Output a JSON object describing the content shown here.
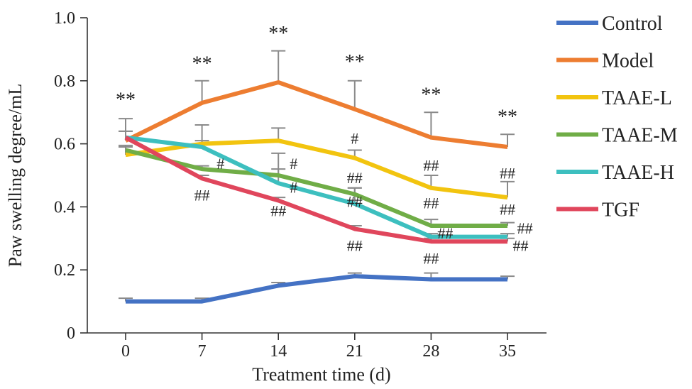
{
  "chart_data": {
    "type": "line",
    "xlabel": "Treatment time (d)",
    "ylabel": "Paw swelling degree/mL",
    "x": [
      0,
      7,
      14,
      21,
      28,
      35
    ],
    "x_tick_labels": [
      "0",
      "7",
      "14",
      "21",
      "28",
      "35"
    ],
    "ylim": [
      0,
      1.0
    ],
    "y_tick_labels": [
      "0",
      "0.2",
      "0.4",
      "0.6",
      "0.8",
      "1.0"
    ],
    "grid": false,
    "legend_position": "right",
    "series": [
      {
        "name": "Control",
        "color": "#4472c4",
        "values": [
          0.1,
          0.1,
          0.15,
          0.18,
          0.17,
          0.17
        ],
        "error": [
          0.01,
          0.01,
          0.01,
          0.01,
          0.02,
          0.01
        ]
      },
      {
        "name": "Model",
        "color": "#ed7d31",
        "values": [
          0.61,
          0.73,
          0.795,
          0.71,
          0.62,
          0.59
        ],
        "error": [
          0.07,
          0.07,
          0.1,
          0.09,
          0.08,
          0.04
        ]
      },
      {
        "name": "TAAE-L",
        "color": "#f2c40f",
        "values": [
          0.565,
          0.6,
          0.61,
          0.555,
          0.46,
          0.43
        ],
        "error": [
          0.03,
          0.01,
          0.04,
          0.025,
          0.04,
          0.05
        ]
      },
      {
        "name": "TAAE-M",
        "color": "#70ad47",
        "values": [
          0.58,
          0.52,
          0.5,
          0.44,
          0.34,
          0.34
        ],
        "error": [
          0.01,
          0.01,
          0.02,
          0.02,
          0.02,
          0.01
        ]
      },
      {
        "name": "TAAE-H",
        "color": "#3dbfbf",
        "values": [
          0.62,
          0.59,
          0.475,
          0.41,
          0.305,
          0.305
        ],
        "error": [
          0.02,
          0.07,
          0.095,
          0.05,
          0.01,
          0.01
        ]
      },
      {
        "name": "TGF",
        "color": "#e0465c",
        "values": [
          0.62,
          0.49,
          0.42,
          0.33,
          0.29,
          0.29
        ],
        "error": [
          0.02,
          0.01,
          0.01,
          0.01,
          0.01,
          0.01
        ]
      }
    ],
    "annotations": [
      {
        "text": "**",
        "x": 0,
        "y": 0.72,
        "size": "large"
      },
      {
        "text": "**",
        "x": 7,
        "y": 0.835,
        "size": "large"
      },
      {
        "text": "**",
        "x": 14,
        "y": 0.93,
        "size": "large"
      },
      {
        "text": "**",
        "x": 21,
        "y": 0.84,
        "size": "large"
      },
      {
        "text": "**",
        "x": 28,
        "y": 0.735,
        "size": "large"
      },
      {
        "text": "**",
        "x": 35,
        "y": 0.665,
        "size": "large"
      },
      {
        "text": "#",
        "x": 8.7,
        "y": 0.52,
        "size": "small"
      },
      {
        "text": "##",
        "x": 7,
        "y": 0.42,
        "size": "small"
      },
      {
        "text": "#",
        "x": 15.4,
        "y": 0.52,
        "size": "small"
      },
      {
        "text": "#",
        "x": 15.4,
        "y": 0.445,
        "size": "small"
      },
      {
        "text": "##",
        "x": 14,
        "y": 0.37,
        "size": "small"
      },
      {
        "text": "#",
        "x": 21,
        "y": 0.6,
        "size": "small"
      },
      {
        "text": "##",
        "x": 21,
        "y": 0.475,
        "size": "small"
      },
      {
        "text": "##",
        "x": 21,
        "y": 0.4,
        "size": "small"
      },
      {
        "text": "##",
        "x": 21,
        "y": 0.26,
        "size": "small"
      },
      {
        "text": "##",
        "x": 28,
        "y": 0.515,
        "size": "small"
      },
      {
        "text": "##",
        "x": 28,
        "y": 0.395,
        "size": "small"
      },
      {
        "text": "##",
        "x": 29.3,
        "y": 0.3,
        "size": "small"
      },
      {
        "text": "##",
        "x": 28,
        "y": 0.22,
        "size": "small"
      },
      {
        "text": "##",
        "x": 35,
        "y": 0.49,
        "size": "small"
      },
      {
        "text": "##",
        "x": 35,
        "y": 0.375,
        "size": "small"
      },
      {
        "text": "##",
        "x": 36.6,
        "y": 0.315,
        "size": "small"
      },
      {
        "text": "##",
        "x": 36.2,
        "y": 0.26,
        "size": "small"
      }
    ]
  }
}
